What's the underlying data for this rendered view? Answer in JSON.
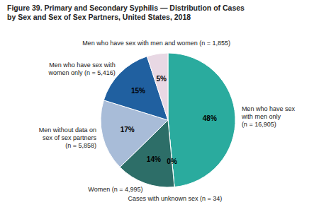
{
  "chart_data": {
    "type": "pie",
    "title": "Figure 39. Primary and Secondary Syphilis — Distribution of Cases\nby Sex and Sex of Sex Partners, United States, 2018",
    "categories": [
      "Men who have sex\nwith men only\n(n = 16,905)",
      "Cases with unknown sex (n = 34)",
      "Women (n = 4,995)",
      "Men without data on\nsex of sex partners\n(n = 5,858)",
      "Men who have sex with\nwomen only (n = 5,416)",
      "Men who have sex with men and women (n = 1,855)"
    ],
    "values": [
      48,
      0,
      14,
      17,
      15,
      5
    ],
    "value_labels": [
      "48%",
      "0%",
      "14%",
      "17%",
      "15%",
      "5%"
    ],
    "colors": [
      "#2aab9e",
      "#1a4a44",
      "#2d6e68",
      "#a8bcd8",
      "#2060a0",
      "#e8d8e4"
    ],
    "data_labels": true
  }
}
